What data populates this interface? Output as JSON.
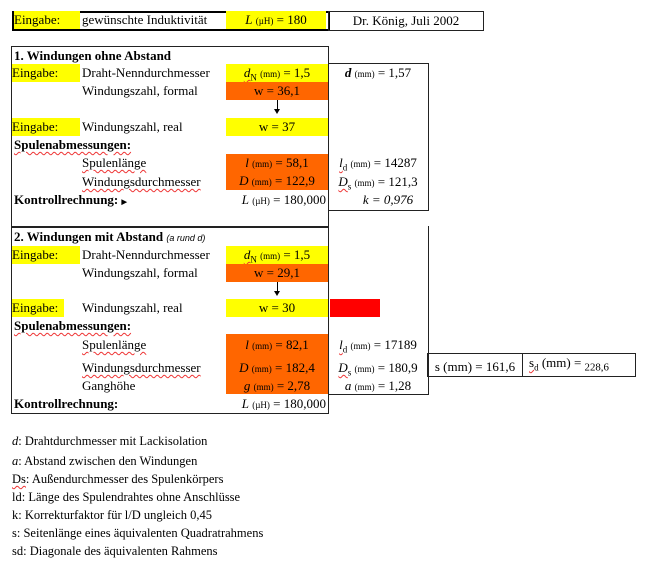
{
  "header": {
    "eingabe": "Eingabe:",
    "label": "gewünschte Induktivität",
    "L_sym": "L",
    "L_unit": "(µH)",
    "L_val": "= 180",
    "author": "Dr. König, Juli 2002"
  },
  "s1": {
    "title": "1. Windungen ohne Abstand",
    "eingabe": "Eingabe:",
    "draht": "Draht-Nenndurchmesser",
    "dn_sym": "d",
    "dn_sub": "N",
    "dn_unit": "(mm)",
    "dn_val": "= 1,5",
    "d_sym": "d",
    "d_unit": "(mm)",
    "d_val": "= 1,57",
    "formal": "Windungszahl, formal",
    "wf": "w = 36,1",
    "real": "Windungszahl, real",
    "wr": "w = 37",
    "spulen": "Spulenabmessungen:",
    "laenge": "Spulenlänge",
    "l_sym": "l",
    "l_unit": "(mm)",
    "l_val": "= 58,1",
    "ld_sym": "l",
    "ld_sub": "d",
    "ld_unit": "(mm)",
    "ld_val": "= 14287",
    "durch": "Windungsdurchmesser",
    "D_sym": "D",
    "D_unit": "(mm)",
    "D_val": "= 122,9",
    "Ds_sym": "D",
    "Ds_sub": "s",
    "Ds_unit": "(mm)",
    "Ds_val": "= 121,3",
    "kontroll": "Kontrollrechnung:",
    "L_sym": "L",
    "L_unit": "(µH)",
    "L_val": "= 180,000",
    "k": "k = 0,976"
  },
  "s2": {
    "title": "2. Windungen mit Abstand",
    "note": "(a rund d)",
    "eingabe": "Eingabe:",
    "draht": "Draht-Nenndurchmesser",
    "dn_sym": "d",
    "dn_sub": "N",
    "dn_unit": "(mm)",
    "dn_val": "= 1,5",
    "formal": "Windungszahl, formal",
    "wf": "w = 29,1",
    "real": "Windungszahl, real",
    "wr": "w = 30",
    "spulen": "Spulenabmessungen:",
    "laenge": "Spulenlänge",
    "l_sym": "l",
    "l_unit": "(mm)",
    "l_val": "= 82,1",
    "ld_sym": "l",
    "ld_sub": "d",
    "ld_unit": "(mm)",
    "ld_val": "= 17189",
    "durch": "Windungsdurchmesser",
    "D_sym": "D",
    "D_unit": "(mm)",
    "D_val": "= 182,4",
    "Ds_sym": "D",
    "Ds_sub": "s",
    "Ds_unit": "(mm)",
    "Ds_val": "= 180,9",
    "gang": "Ganghöhe",
    "g_sym": "g",
    "g_unit": "(mm)",
    "g_val": "= 2,78",
    "a_sym": "a",
    "a_unit": "(mm)",
    "a_val": "= 1,28",
    "s": "s (mm) = 161,6",
    "sd_sym": "s",
    "sd_sub": "d",
    "sd_unit": "(mm) =",
    "sd_val": "228,6",
    "kontroll": "Kontrollrechnung:",
    "L_sym": "L",
    "L_unit": "(µH)",
    "L_val": "= 180,000"
  },
  "legend": [
    {
      "sym": "d",
      "text": ": Drahtdurchmesser mit Lackisolation"
    },
    {
      "sym": "a",
      "text": ": Abstand zwischen den Windungen"
    },
    {
      "sym": "Ds",
      "text": ": Außendurchmesser des Spulenkörpers"
    },
    {
      "sym": "ld",
      "text": ": Länge des Spulendrahtes ohne Anschlüsse"
    },
    {
      "sym": "k",
      "text": ": Korrekturfaktor für l/D ungleich 0,45"
    },
    {
      "sym": "s",
      "text": ": Seitenlänge eines äquivalenten Quadratrahmens"
    },
    {
      "sym": "sd",
      "text": ": Diagonale des äquivalenten Rahmens"
    }
  ]
}
